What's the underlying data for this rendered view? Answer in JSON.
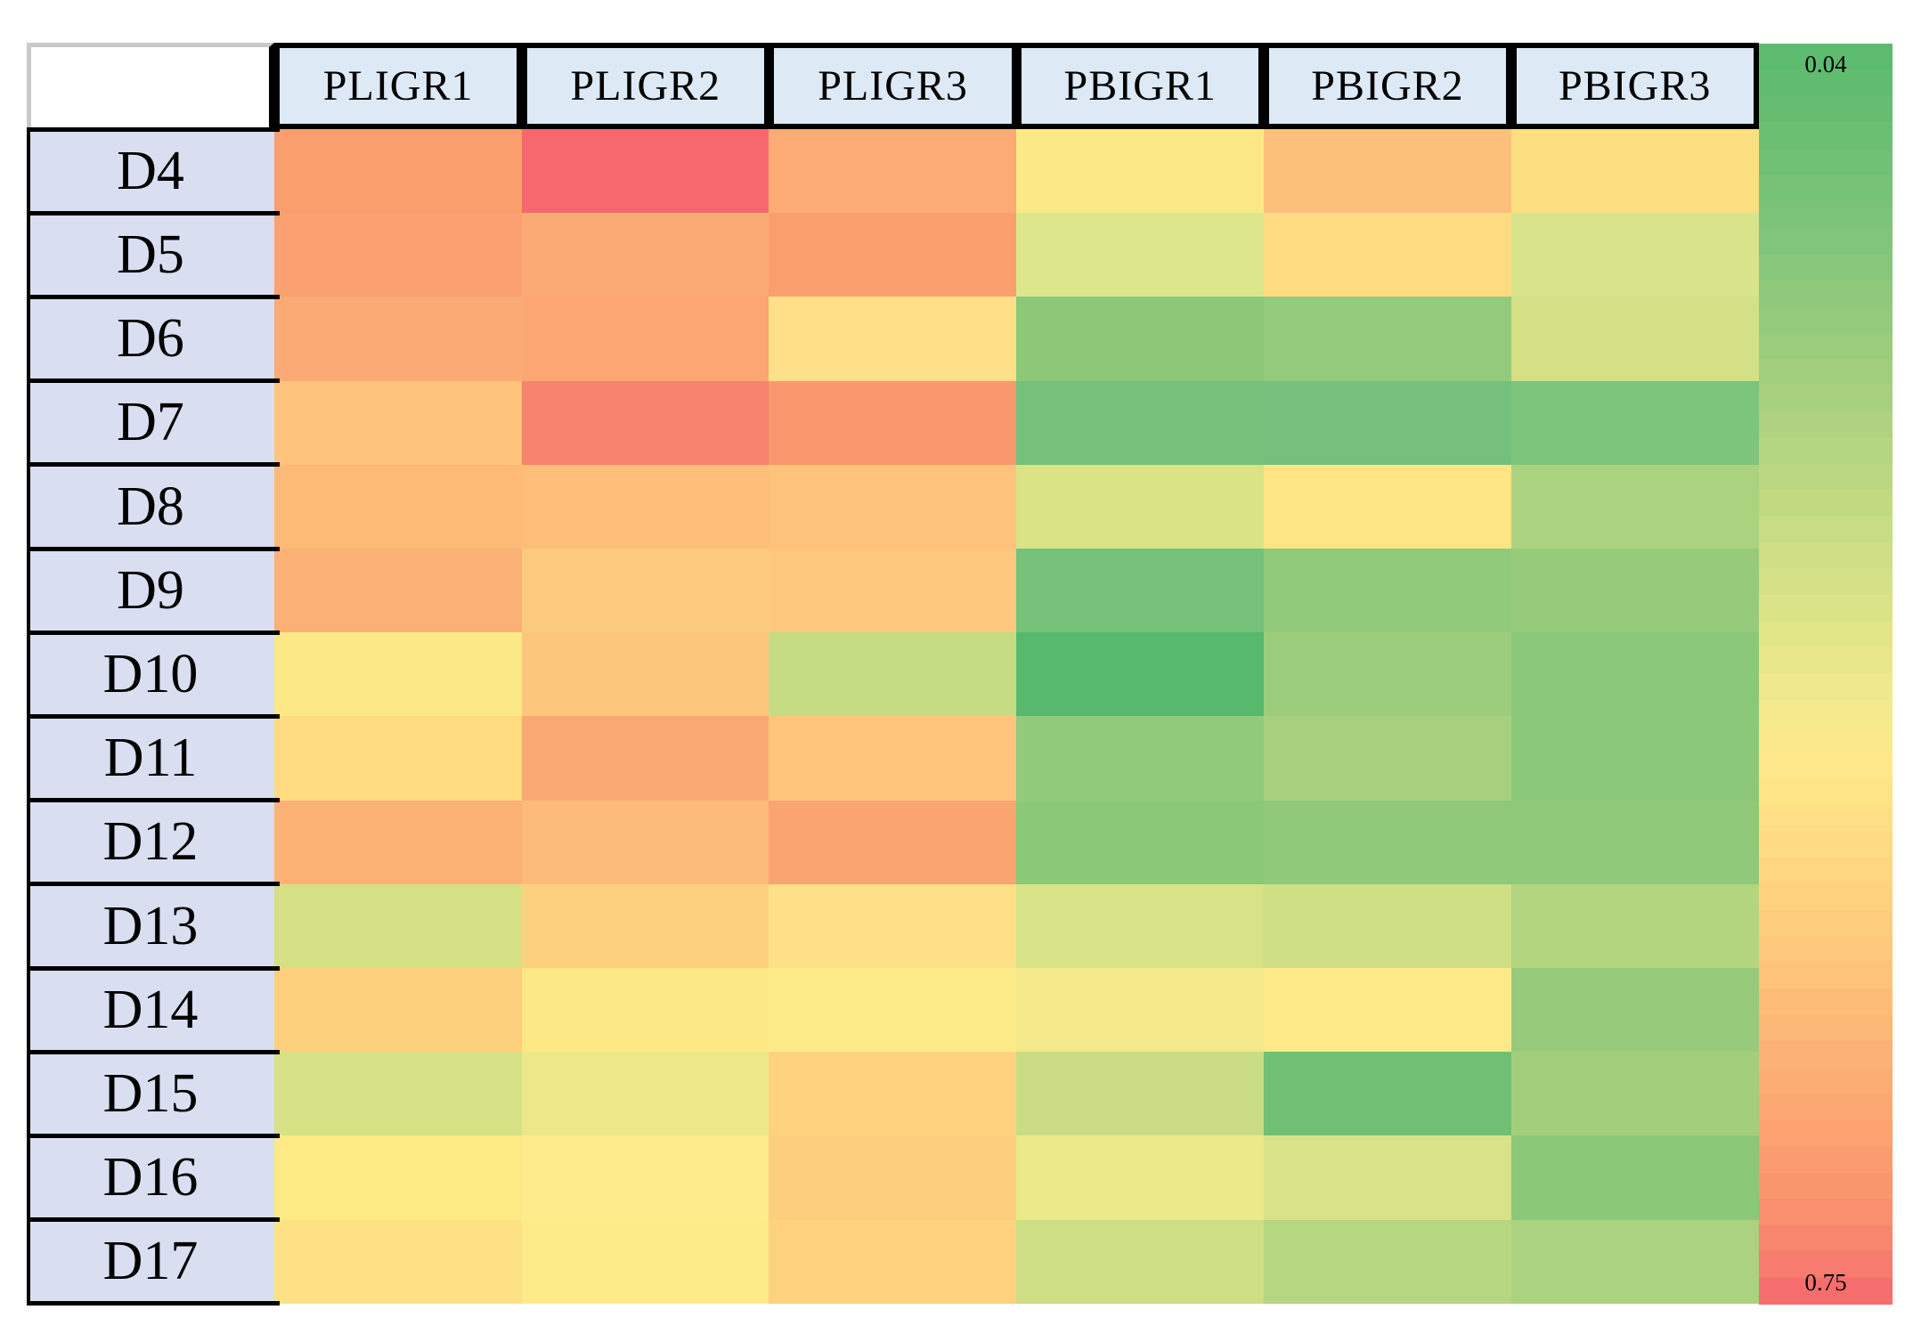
{
  "figure": {
    "background": "#ffffff"
  },
  "styles": {
    "header_bg": "#dde9f5",
    "row_label_bg": "#d9def0",
    "grid_border": "#000000",
    "corner_border_gray": "#c9c9c9",
    "text_color": "#000000"
  },
  "chart_data": {
    "type": "heatmap",
    "title": "",
    "x_labels": [
      "PLIGR1",
      "PLIGR2",
      "PLIGR3",
      "PBIGR1",
      "PBIGR2",
      "PBIGR3"
    ],
    "y_labels": [
      "D4",
      "D5",
      "D6",
      "D7",
      "D8",
      "D9",
      "D10",
      "D11",
      "D12",
      "D13",
      "D14",
      "D15",
      "D16",
      "D17"
    ],
    "colorbar": {
      "min": 0.04,
      "max": 0.75,
      "min_label": "0.04",
      "max_label": "0.75",
      "orientation": "vertical",
      "low_color_meaning": "green (0.04) at top",
      "high_color_meaning": "red (0.75) at bottom",
      "segments": 48,
      "gradient_stops": [
        {
          "t": 0.0,
          "c": "#5bba6e"
        },
        {
          "t": 0.06,
          "c": "#68be72"
        },
        {
          "t": 0.12,
          "c": "#77c278"
        },
        {
          "t": 0.18,
          "c": "#88c77b"
        },
        {
          "t": 0.24,
          "c": "#9acc7c"
        },
        {
          "t": 0.3,
          "c": "#add280"
        },
        {
          "t": 0.36,
          "c": "#c0d982"
        },
        {
          "t": 0.42,
          "c": "#d3e086"
        },
        {
          "t": 0.48,
          "c": "#e5e78a"
        },
        {
          "t": 0.53,
          "c": "#f4ea8d"
        },
        {
          "t": 0.57,
          "c": "#fee98a"
        },
        {
          "t": 0.63,
          "c": "#fedc83"
        },
        {
          "t": 0.69,
          "c": "#fdcf7e"
        },
        {
          "t": 0.75,
          "c": "#fdc07a"
        },
        {
          "t": 0.81,
          "c": "#fcb075"
        },
        {
          "t": 0.87,
          "c": "#fba170"
        },
        {
          "t": 0.92,
          "c": "#f9926d"
        },
        {
          "t": 0.96,
          "c": "#f8806e"
        },
        {
          "t": 1.0,
          "c": "#f4686d"
        }
      ]
    },
    "cell_colors": [
      [
        "#fa9e6e",
        "#f5696e",
        "#fbab73",
        "#fde886",
        "#fdc07b",
        "#fcdf80"
      ],
      [
        "#fba171",
        "#fbaa75",
        "#fa9f6e",
        "#dde68b",
        "#fedb80",
        "#d9e38c"
      ],
      [
        "#fbaa76",
        "#fba673",
        "#fee089",
        "#8cc878",
        "#94ca7b",
        "#d3e085"
      ],
      [
        "#fdc47e",
        "#f8836f",
        "#f9986e",
        "#75c17b",
        "#74c07c",
        "#7dc47d"
      ],
      [
        "#fcba76",
        "#fdbe7a",
        "#fdc27c",
        "#dae385",
        "#fde584",
        "#abd37f"
      ],
      [
        "#fbb075",
        "#fdcb7e",
        "#fdc87e",
        "#76c27b",
        "#92ca7b",
        "#96cb7b"
      ],
      [
        "#fde886",
        "#fdc67d",
        "#c6dc82",
        "#57b96d",
        "#9ccd7c",
        "#8bc87a"
      ],
      [
        "#fedb81",
        "#fba974",
        "#fdc67c",
        "#92ca7b",
        "#a7d07e",
        "#8cc87a"
      ],
      [
        "#fcb274",
        "#fdbb79",
        "#faa46f",
        "#8bc877",
        "#8fc979",
        "#8fc979"
      ],
      [
        "#d4e083",
        "#fdd07f",
        "#fee187",
        "#d8e287",
        "#cfdf85",
        "#b4d580"
      ],
      [
        "#fdd07e",
        "#fde886",
        "#fdeb89",
        "#f3e98a",
        "#fde987",
        "#97cb7b"
      ],
      [
        "#d7e185",
        "#ece88a",
        "#fdd37f",
        "#cadd84",
        "#71bf75",
        "#a3cf7d"
      ],
      [
        "#fdea85",
        "#fdec8b",
        "#fdce7d",
        "#ece98b",
        "#d9e287",
        "#8bc878"
      ],
      [
        "#fee184",
        "#fdeb8a",
        "#fdd27f",
        "#cede85",
        "#b7d681",
        "#abd27e"
      ]
    ],
    "values_estimated": [
      [
        0.63,
        0.74,
        0.59,
        0.41,
        0.54,
        0.45
      ],
      [
        0.62,
        0.6,
        0.63,
        0.33,
        0.47,
        0.31
      ],
      [
        0.6,
        0.61,
        0.44,
        0.15,
        0.17,
        0.3
      ],
      [
        0.53,
        0.69,
        0.65,
        0.1,
        0.1,
        0.12
      ],
      [
        0.56,
        0.55,
        0.54,
        0.31,
        0.42,
        0.22
      ],
      [
        0.58,
        0.52,
        0.52,
        0.1,
        0.16,
        0.17
      ],
      [
        0.41,
        0.53,
        0.27,
        0.05,
        0.18,
        0.15
      ],
      [
        0.47,
        0.6,
        0.53,
        0.16,
        0.2,
        0.15
      ],
      [
        0.58,
        0.55,
        0.61,
        0.15,
        0.16,
        0.16
      ],
      [
        0.3,
        0.5,
        0.44,
        0.31,
        0.29,
        0.23
      ],
      [
        0.5,
        0.41,
        0.4,
        0.38,
        0.41,
        0.17
      ],
      [
        0.3,
        0.35,
        0.49,
        0.28,
        0.09,
        0.19
      ],
      [
        0.4,
        0.39,
        0.51,
        0.35,
        0.31,
        0.15
      ],
      [
        0.44,
        0.4,
        0.5,
        0.29,
        0.24,
        0.21
      ]
    ]
  }
}
